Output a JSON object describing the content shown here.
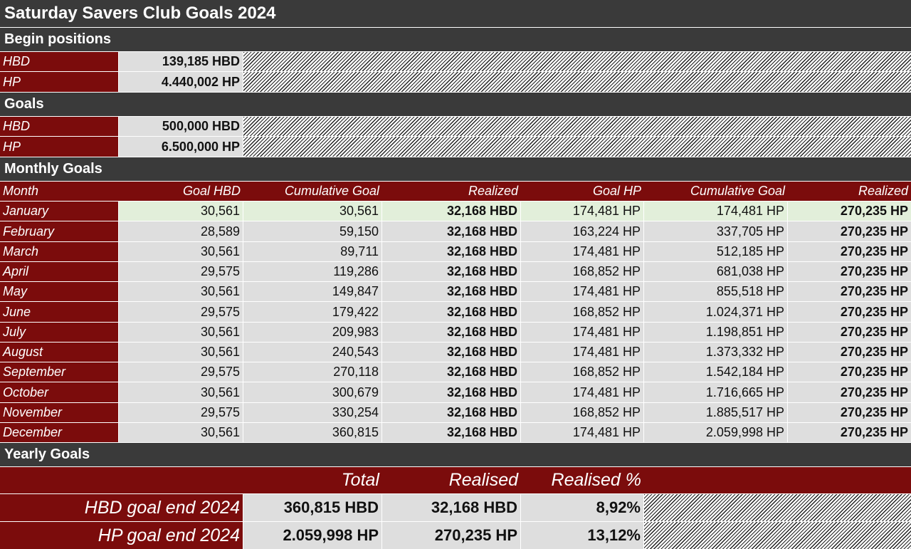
{
  "title": "Saturday Savers Club Goals 2024",
  "begin": {
    "heading": "Begin positions",
    "rows": [
      {
        "label": "HBD",
        "value": "139,185 HBD"
      },
      {
        "label": "HP",
        "value": "4.440,002 HP"
      }
    ]
  },
  "goals": {
    "heading": "Goals",
    "rows": [
      {
        "label": "HBD",
        "value": "500,000 HBD"
      },
      {
        "label": "HP",
        "value": "6.500,000 HP"
      }
    ]
  },
  "monthly": {
    "heading": "Monthly Goals",
    "columns": [
      "Month",
      "Goal HBD",
      "Cumulative Goal",
      "Realized",
      "Goal HP",
      "Cumulative Goal",
      "Realized"
    ],
    "rows": [
      [
        "January",
        "30,561",
        "30,561",
        "32,168 HBD",
        "174,481 HP",
        "174,481 HP",
        "270,235 HP"
      ],
      [
        "February",
        "28,589",
        "59,150",
        "32,168 HBD",
        "163,224 HP",
        "337,705 HP",
        "270,235 HP"
      ],
      [
        "March",
        "30,561",
        "89,711",
        "32,168 HBD",
        "174,481 HP",
        "512,185 HP",
        "270,235 HP"
      ],
      [
        "April",
        "29,575",
        "119,286",
        "32,168 HBD",
        "168,852 HP",
        "681,038 HP",
        "270,235 HP"
      ],
      [
        "May",
        "30,561",
        "149,847",
        "32,168 HBD",
        "174,481 HP",
        "855,518 HP",
        "270,235 HP"
      ],
      [
        "June",
        "29,575",
        "179,422",
        "32,168 HBD",
        "168,852 HP",
        "1.024,371 HP",
        "270,235 HP"
      ],
      [
        "July",
        "30,561",
        "209,983",
        "32,168 HBD",
        "174,481 HP",
        "1.198,851 HP",
        "270,235 HP"
      ],
      [
        "August",
        "30,561",
        "240,543",
        "32,168 HBD",
        "174,481 HP",
        "1.373,332 HP",
        "270,235 HP"
      ],
      [
        "September",
        "29,575",
        "270,118",
        "32,168 HBD",
        "168,852 HP",
        "1.542,184 HP",
        "270,235 HP"
      ],
      [
        "October",
        "30,561",
        "300,679",
        "32,168 HBD",
        "174,481 HP",
        "1.716,665 HP",
        "270,235 HP"
      ],
      [
        "November",
        "29,575",
        "330,254",
        "32,168 HBD",
        "168,852 HP",
        "1.885,517 HP",
        "270,235 HP"
      ],
      [
        "December",
        "30,561",
        "360,815",
        "32,168 HBD",
        "174,481 HP",
        "2.059,998 HP",
        "270,235 HP"
      ]
    ]
  },
  "yearly": {
    "heading": "Yearly Goals",
    "columns": [
      "Total",
      "Realised",
      "Realised %"
    ],
    "rows": [
      {
        "label": "HBD goal end 2024",
        "total": "360,815 HBD",
        "realised": "32,168 HBD",
        "pct": "8,92%"
      },
      {
        "label": "HP goal end 2024",
        "total": "2.059,998 HP",
        "realised": "270,235 HP",
        "pct": "13,12%"
      }
    ]
  },
  "colors": {
    "header_dark": "#3a3a3a",
    "label_red": "#7b0c0c",
    "cell_gray": "#dedede",
    "highlight_green": "#e2efda"
  }
}
